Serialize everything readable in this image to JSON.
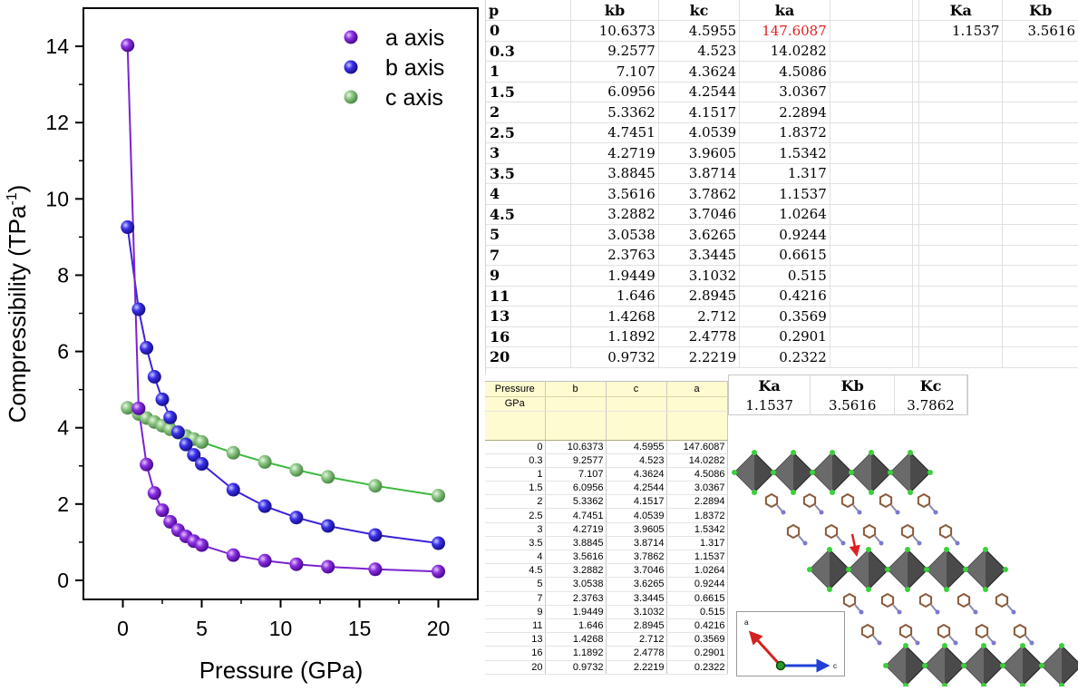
{
  "chart_data": {
    "type": "line",
    "xlabel": "Pressure (GPa)",
    "ylabel": "Compressibility (TPa",
    "ylabel_sup": "-1",
    "ylabel_close": ")",
    "xlim": [
      -2.5,
      22.5
    ],
    "ylim": [
      -0.5,
      15
    ],
    "xticks": [
      0,
      5,
      10,
      15,
      20
    ],
    "xtick_labels": [
      "0",
      "5",
      "10",
      "15",
      "20"
    ],
    "yticks": [
      0,
      2,
      4,
      6,
      8,
      10,
      12,
      14
    ],
    "ytick_labels": [
      "0",
      "2",
      "4",
      "6",
      "8",
      "10",
      "12",
      "14"
    ],
    "legend_position": "top-right",
    "x": [
      0.3,
      1,
      1.5,
      2,
      2.5,
      3,
      3.5,
      4,
      4.5,
      5,
      7,
      9,
      11,
      13,
      16,
      20
    ],
    "series": [
      {
        "name": "a axis",
        "color": "#7b22d0",
        "values": [
          14.0282,
          4.5086,
          3.0367,
          2.2894,
          1.8372,
          1.5342,
          1.317,
          1.1537,
          1.0264,
          0.9244,
          0.6615,
          0.515,
          0.4216,
          0.3569,
          0.2901,
          0.2322
        ]
      },
      {
        "name": "b axis",
        "color": "#3a22d8",
        "values": [
          9.2577,
          7.107,
          6.0956,
          5.3362,
          4.7451,
          4.2719,
          3.8845,
          3.5616,
          3.2882,
          3.0538,
          2.3763,
          1.9449,
          1.646,
          1.4268,
          1.1892,
          0.9732
        ]
      },
      {
        "name": "c axis",
        "color": "#84c07c",
        "line_color": "#3cb83c",
        "values": [
          4.523,
          4.3624,
          4.2544,
          4.1517,
          4.0539,
          3.9605,
          3.8714,
          3.7862,
          3.7046,
          3.6265,
          3.3445,
          3.1032,
          2.8945,
          2.712,
          2.4778,
          2.2219
        ]
      }
    ]
  },
  "sheet_top": {
    "headers": [
      "p",
      "kb",
      "kc",
      "ka",
      "",
      "",
      "Ka",
      "Kb"
    ],
    "summary_row": [
      "1.1537",
      "3.5616"
    ],
    "rows": [
      [
        "0",
        "10.6373",
        "4.5955",
        "147.6087"
      ],
      [
        "0.3",
        "9.2577",
        "4.523",
        "14.0282"
      ],
      [
        "1",
        "7.107",
        "4.3624",
        "4.5086"
      ],
      [
        "1.5",
        "6.0956",
        "4.2544",
        "3.0367"
      ],
      [
        "2",
        "5.3362",
        "4.1517",
        "2.2894"
      ],
      [
        "2.5",
        "4.7451",
        "4.0539",
        "1.8372"
      ],
      [
        "3",
        "4.2719",
        "3.9605",
        "1.5342"
      ],
      [
        "3.5",
        "3.8845",
        "3.8714",
        "1.317"
      ],
      [
        "4",
        "3.5616",
        "3.7862",
        "1.1537"
      ],
      [
        "4.5",
        "3.2882",
        "3.7046",
        "1.0264"
      ],
      [
        "5",
        "3.0538",
        "3.6265",
        "0.9244"
      ],
      [
        "7",
        "2.3763",
        "3.3445",
        "0.6615"
      ],
      [
        "9",
        "1.9449",
        "3.1032",
        "0.515"
      ],
      [
        "11",
        "1.646",
        "2.8945",
        "0.4216"
      ],
      [
        "13",
        "1.4268",
        "2.712",
        "0.3569"
      ],
      [
        "16",
        "1.1892",
        "2.4778",
        "0.2901"
      ],
      [
        "20",
        "0.9732",
        "2.2219",
        "0.2322"
      ]
    ],
    "highlight_color": "#e02020"
  },
  "summary_box": {
    "headers": [
      "Ka",
      "Kb",
      "Kc"
    ],
    "values": [
      "1.1537",
      "3.5616",
      "3.7862"
    ]
  },
  "sheet_bottom": {
    "headers": [
      "Pressure",
      "b",
      "c",
      "a"
    ],
    "units": [
      "GPa",
      "",
      "",
      ""
    ]
  },
  "structure": {
    "axis_a_label": "a",
    "axis_c_label": "c",
    "axis_a_color": "#d42020",
    "axis_c_color": "#2040d8",
    "axis_b_color": "#2a9a2a"
  }
}
